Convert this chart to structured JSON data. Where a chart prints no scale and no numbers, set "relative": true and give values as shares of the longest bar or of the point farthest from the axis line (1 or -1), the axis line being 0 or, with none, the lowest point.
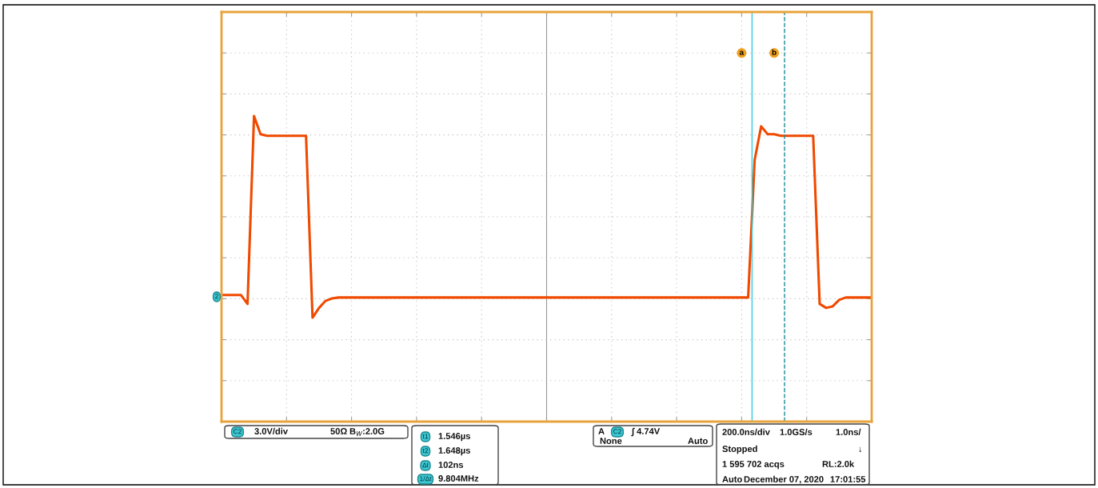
{
  "chart_data": {
    "type": "line",
    "relative": true,
    "tick_labels": false,
    "grid": true,
    "legend": false,
    "marker": "none",
    "line_style": "solid",
    "categories": [
      null,
      null,
      null,
      null,
      null,
      null,
      null,
      null,
      null,
      null,
      null,
      null,
      null,
      null,
      null,
      null,
      null,
      null,
      null,
      null,
      null,
      null,
      null,
      null,
      null,
      null,
      null,
      null,
      null,
      null,
      null,
      null,
      null,
      null,
      null,
      null,
      null,
      null,
      null,
      null,
      null,
      null,
      null,
      null,
      null,
      null,
      null,
      null,
      null,
      null,
      null,
      null,
      null,
      null,
      null,
      null,
      null,
      null,
      null,
      null,
      null,
      null,
      null,
      null,
      null,
      null,
      null,
      null,
      null,
      null,
      null,
      null,
      null,
      null,
      null,
      null,
      null,
      null,
      null,
      null,
      null,
      null,
      null,
      null,
      null,
      null,
      null,
      null,
      null,
      null,
      null,
      null,
      null,
      null,
      null,
      null,
      null,
      null,
      null,
      null,
      null
    ],
    "series": [
      {
        "color": "#f04a00",
        "values": [
          0.414,
          0.414,
          0.414,
          0.414,
          0.385,
          1.0,
          0.94,
          0.935,
          0.935,
          0.935,
          0.935,
          0.935,
          0.935,
          0.935,
          0.34,
          0.372,
          0.395,
          0.403,
          0.406,
          0.406,
          0.406,
          0.406,
          0.406,
          0.406,
          0.406,
          0.406,
          0.406,
          0.406,
          0.406,
          0.406,
          0.406,
          0.406,
          0.406,
          0.406,
          0.406,
          0.406,
          0.406,
          0.406,
          0.406,
          0.406,
          0.406,
          0.406,
          0.406,
          0.406,
          0.406,
          0.406,
          0.406,
          0.406,
          0.406,
          0.406,
          0.406,
          0.406,
          0.406,
          0.406,
          0.406,
          0.406,
          0.406,
          0.406,
          0.406,
          0.406,
          0.406,
          0.406,
          0.406,
          0.406,
          0.406,
          0.406,
          0.406,
          0.406,
          0.406,
          0.406,
          0.406,
          0.406,
          0.406,
          0.406,
          0.406,
          0.406,
          0.406,
          0.406,
          0.406,
          0.406,
          0.406,
          0.406,
          0.856,
          0.966,
          0.94,
          0.94,
          0.935,
          0.935,
          0.935,
          0.935,
          0.935,
          0.935,
          0.385,
          0.372,
          0.377,
          0.398,
          0.406,
          0.406,
          0.406,
          0.406,
          0.406
        ]
      }
    ],
    "annotations": [
      "a",
      "b",
      "C2",
      "3.0V/div",
      "50Ω",
      "B$_{W}$:2.0G",
      "t1",
      "1.546µs",
      "t2",
      "1.648µs",
      "Δt",
      "102ns",
      "1/Δt",
      "9.804MHz",
      "A",
      "C2",
      "∫ 4.74V",
      "None",
      "Auto",
      "200.0ns/div",
      "1.0GS/s",
      "1.0ns/",
      "Stopped",
      "↓",
      "1 595 702 acqs",
      "RL:2.0k",
      "Auto",
      "December 07, 2020",
      "17:01:55",
      "2"
    ]
  }
}
